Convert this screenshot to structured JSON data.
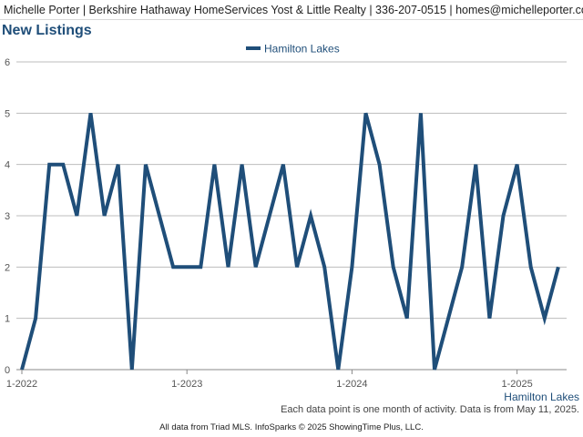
{
  "header": {
    "agent_info": "Michelle Porter | Berkshire Hathaway HomeServices Yost & Little Realty | 336-207-0515 | homes@michelleporter.com"
  },
  "footer": {
    "note": "Each data point is one month of activity. Data is from May 11, 2025.",
    "credit": "All data from Triad MLS. InfoSparks © 2025 ShowingTime Plus, LLC."
  },
  "colors": {
    "series": "#1f4e79",
    "grid": "#bdbdbd"
  },
  "chart_data": {
    "type": "line",
    "title": "New Listings",
    "region_label": "Hamilton Lakes",
    "xlabel": "",
    "ylabel": "",
    "ylim": [
      0,
      6
    ],
    "y_ticks": [
      0,
      1,
      2,
      3,
      4,
      5,
      6
    ],
    "x_tick_labels": [
      "1-2022",
      "1-2023",
      "1-2024",
      "1-2025"
    ],
    "legend": "top-center",
    "grid": true,
    "series": [
      {
        "name": "Hamilton Lakes",
        "x": [
          "2022-01",
          "2022-02",
          "2022-03",
          "2022-04",
          "2022-05",
          "2022-06",
          "2022-07",
          "2022-08",
          "2022-09",
          "2022-10",
          "2022-11",
          "2022-12",
          "2023-01",
          "2023-02",
          "2023-03",
          "2023-04",
          "2023-05",
          "2023-06",
          "2023-07",
          "2023-08",
          "2023-09",
          "2023-10",
          "2023-11",
          "2023-12",
          "2024-01",
          "2024-02",
          "2024-03",
          "2024-04",
          "2024-05",
          "2024-06",
          "2024-07",
          "2024-08",
          "2024-09",
          "2024-10",
          "2024-11",
          "2024-12",
          "2025-01",
          "2025-02",
          "2025-03",
          "2025-04"
        ],
        "values": [
          0,
          1,
          4,
          4,
          3,
          5,
          3,
          4,
          0,
          4,
          3,
          2,
          2,
          2,
          4,
          2,
          4,
          2,
          3,
          4,
          2,
          3,
          2,
          0,
          2,
          5,
          4,
          2,
          1,
          5,
          0,
          1,
          2,
          4,
          1,
          3,
          4,
          2,
          1,
          2
        ]
      }
    ]
  }
}
